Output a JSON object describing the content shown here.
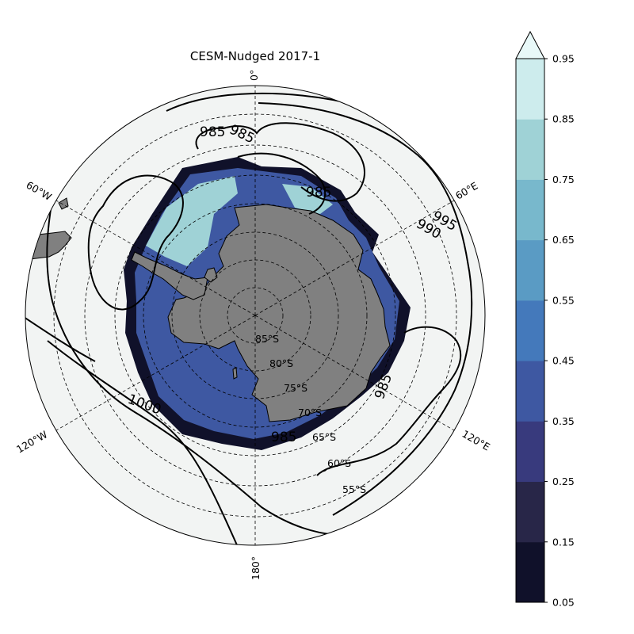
{
  "title": "CESM-Nudged 2017-1",
  "map": {
    "projection": "south-polar-stereographic",
    "ocean_color": "#f2f4f3",
    "land_color": "#808080",
    "longitude_labels": [
      "0°",
      "60°E",
      "120°E",
      "180°",
      "120°W",
      "60°W"
    ],
    "latitude_labels": [
      "85°S",
      "80°S",
      "75°S",
      "70°S",
      "65°S",
      "60°S",
      "55°S"
    ],
    "pressure_contour_labels": [
      "985",
      "985",
      "985",
      "985",
      "985",
      "990",
      "995",
      "1000"
    ]
  },
  "colorbar": {
    "tick_labels": [
      "0.05",
      "0.15",
      "0.25",
      "0.35",
      "0.45",
      "0.55",
      "0.65",
      "0.75",
      "0.85",
      "0.95"
    ],
    "levels": [
      0.05,
      0.15,
      0.25,
      0.35,
      0.45,
      0.55,
      0.65,
      0.75,
      0.85,
      0.95
    ],
    "colors": [
      "#10112a",
      "#282648",
      "#383a7d",
      "#3e58a2",
      "#4479bb",
      "#5a9bc4",
      "#78b8cc",
      "#9fd2d6",
      "#cdeced",
      "#e8f8f8"
    ],
    "extend": "max"
  }
}
